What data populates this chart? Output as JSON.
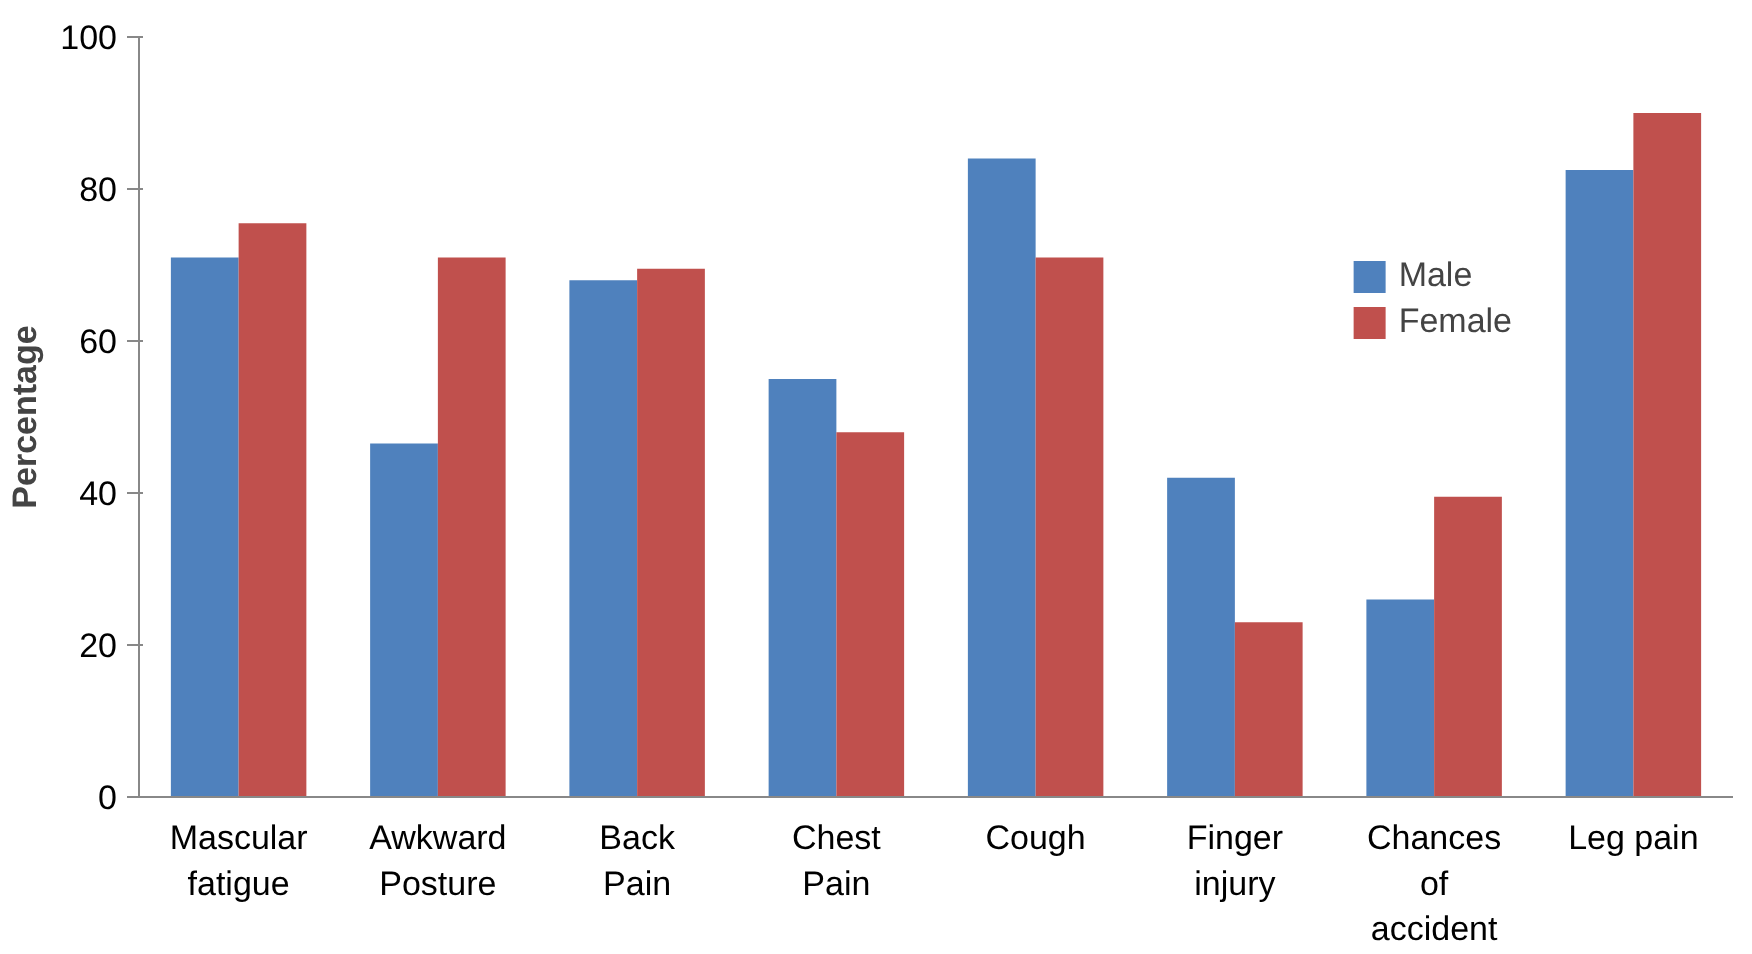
{
  "chart_data": {
    "type": "bar",
    "ylabel": "Percentage",
    "categories": [
      "Mascular\nfatigue",
      "Awkward\nPosture",
      "Back\nPain",
      "Chest\nPain",
      "Cough",
      "Finger\ninjury",
      "Chances\nof\naccident",
      "Leg pain"
    ],
    "series": [
      {
        "name": "Male",
        "color": "#4f81bd",
        "values": [
          71,
          46.5,
          68,
          55,
          84,
          42,
          26,
          82.5
        ]
      },
      {
        "name": "Female",
        "color": "#c0504d",
        "values": [
          75.5,
          71,
          69.5,
          48,
          71,
          23,
          39.5,
          90
        ]
      }
    ],
    "ylim": [
      0,
      100
    ],
    "yticks": [
      0,
      20,
      40,
      60,
      80,
      100
    ],
    "grid": false,
    "legend": "top right"
  }
}
